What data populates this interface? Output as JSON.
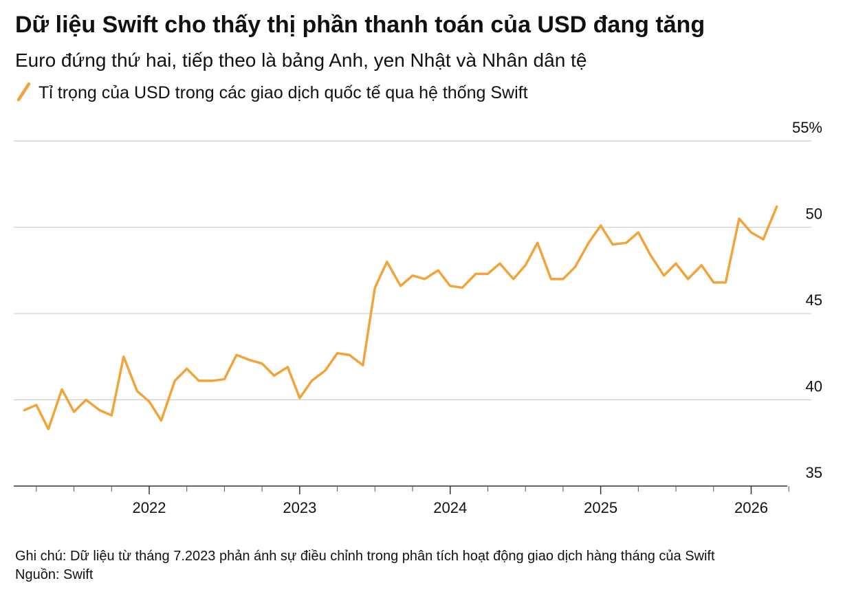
{
  "chart_data": {
    "type": "line",
    "title": "Dữ liệu Swift cho thấy thị phần thanh toán của USD đang tăng",
    "subtitle": "Euro đứng thứ hai, tiếp theo là bảng Anh, yen Nhật và Nhân dân tệ",
    "note": "Ghi chú: Dữ liệu từ tháng 7.2023 phản ánh sự điều chỉnh trong phân tích hoạt động giao dịch hàng tháng của Swift",
    "source": "Nguồn: Swift",
    "x": [
      2021.17,
      2021.25,
      2021.33,
      2021.42,
      2021.5,
      2021.58,
      2021.67,
      2021.75,
      2021.83,
      2021.92,
      2022.0,
      2022.08,
      2022.17,
      2022.25,
      2022.33,
      2022.42,
      2022.5,
      2022.58,
      2022.67,
      2022.75,
      2022.83,
      2022.92,
      2023.0,
      2023.08,
      2023.17,
      2023.25,
      2023.33,
      2023.42,
      2023.5,
      2023.58,
      2023.67,
      2023.75,
      2023.83,
      2023.92,
      2024.0,
      2024.08,
      2024.17,
      2024.25,
      2024.33,
      2024.42,
      2024.5,
      2024.58,
      2024.67,
      2024.75,
      2024.83,
      2024.92,
      2025.0,
      2025.08,
      2025.17,
      2025.25,
      2025.33,
      2025.42,
      2025.5,
      2025.58,
      2025.67,
      2025.75,
      2025.83,
      2025.92,
      2026.0,
      2026.08,
      2026.17
    ],
    "series": [
      {
        "name": "Tỉ trọng của USD trong các giao dịch quốc tế qua hệ thống Swift",
        "color": "#f2a33a",
        "values": [
          39.4,
          39.7,
          38.3,
          40.6,
          39.3,
          40.0,
          39.4,
          39.1,
          42.5,
          40.5,
          39.9,
          38.8,
          41.1,
          41.8,
          41.1,
          41.1,
          41.2,
          42.6,
          42.3,
          42.1,
          41.4,
          41.9,
          40.1,
          41.1,
          41.7,
          42.7,
          42.6,
          42.0,
          46.5,
          48.0,
          46.6,
          47.2,
          47.0,
          47.5,
          46.6,
          46.5,
          47.3,
          47.3,
          47.9,
          47.0,
          47.8,
          49.1,
          47.0,
          47.0,
          47.7,
          49.1,
          50.1,
          49.0,
          49.1,
          49.7,
          48.4,
          47.2,
          47.9,
          47.0,
          47.8,
          46.8,
          46.8,
          50.5,
          49.7,
          49.3,
          51.2
        ]
      }
    ],
    "xlim": [
      2021.1,
      2026.24
    ],
    "xticks": [
      2022,
      2023,
      2024,
      2025,
      2026
    ],
    "xminor_ticks": [
      2021.25,
      2021.5,
      2021.75,
      2022.25,
      2022.5,
      2022.75,
      2023.25,
      2023.5,
      2023.75,
      2024.25,
      2024.5,
      2024.75,
      2025.25,
      2025.5,
      2025.75,
      2026.25
    ],
    "ylim": [
      35,
      56.2
    ],
    "yticks": [
      35,
      40,
      45,
      50,
      {
        "value": 55,
        "label": "55%"
      }
    ],
    "grid": true
  }
}
